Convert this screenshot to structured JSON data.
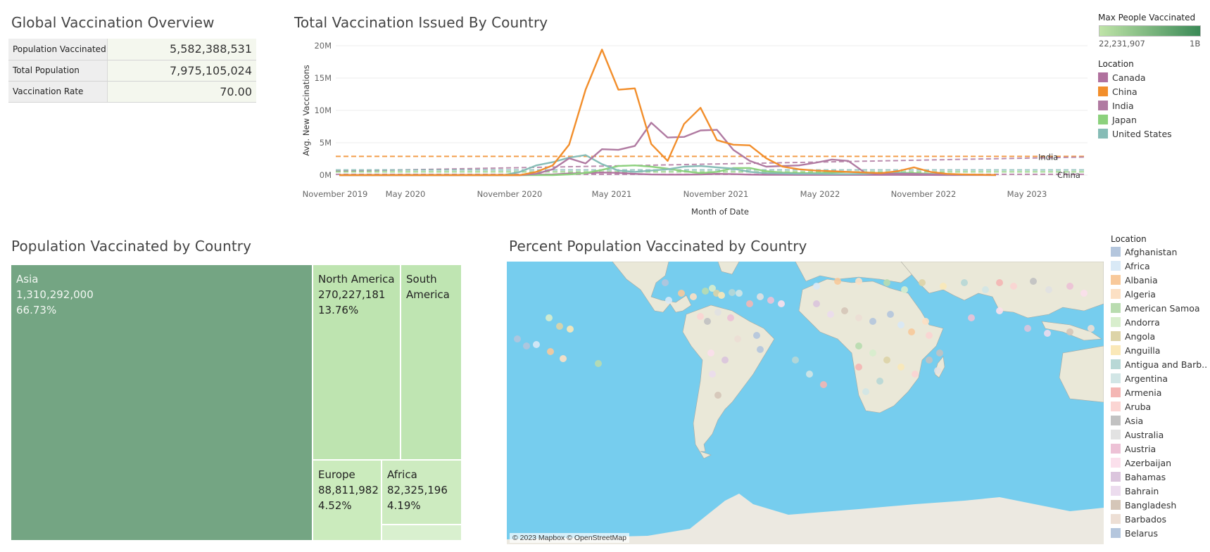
{
  "overview": {
    "title": "Global Vaccination Overview",
    "rows": [
      {
        "label": "Population Vaccinated",
        "value": "5,582,388,531"
      },
      {
        "label": "Total Population",
        "value": "7,975,105,024"
      },
      {
        "label": "Vaccination Rate",
        "value": "70.00"
      }
    ]
  },
  "line_chart_title": "Total Vaccination Issued By Country",
  "color_legend": {
    "title": "Max People Vaccinated",
    "min": "22,231,907",
    "max": "1B",
    "colors": [
      "#bfe4a8",
      "#3b8a57"
    ]
  },
  "location_legend": {
    "title": "Location",
    "items": [
      {
        "name": "Canada",
        "color": "#b0719e"
      },
      {
        "name": "China",
        "color": "#f28e2b"
      },
      {
        "name": "India",
        "color": "#b07aa1"
      },
      {
        "name": "Japan",
        "color": "#8cd17d"
      },
      {
        "name": "United States",
        "color": "#86bcb6"
      }
    ]
  },
  "treemap_title": "Population Vaccinated by Country",
  "map_title": "Percent Population Vaccinated by Country",
  "map_attribution": "© 2023 Mapbox © OpenStreetMap",
  "map_legend": {
    "title": "Location",
    "items": [
      {
        "name": "Afghanistan",
        "color": "#b4c6dd"
      },
      {
        "name": "Africa",
        "color": "#d9e9f6"
      },
      {
        "name": "Albania",
        "color": "#f8c99b"
      },
      {
        "name": "Algeria",
        "color": "#fce0c4"
      },
      {
        "name": "American Samoa",
        "color": "#b9dcb0"
      },
      {
        "name": "Andorra",
        "color": "#d8eecd"
      },
      {
        "name": "Angola",
        "color": "#ddd4a8"
      },
      {
        "name": "Anguilla",
        "color": "#fae8b8"
      },
      {
        "name": "Antigua and Barb..",
        "color": "#b8d8d6"
      },
      {
        "name": "Argentina",
        "color": "#d2e6e6"
      },
      {
        "name": "Armenia",
        "color": "#f4b6b4"
      },
      {
        "name": "Aruba",
        "color": "#fbd5d3"
      },
      {
        "name": "Asia",
        "color": "#c2c2c2"
      },
      {
        "name": "Australia",
        "color": "#e2e2e2"
      },
      {
        "name": "Austria",
        "color": "#edc2d6"
      },
      {
        "name": "Azerbaijan",
        "color": "#fbe0ec"
      },
      {
        "name": "Bahamas",
        "color": "#dbc5dd"
      },
      {
        "name": "Bahrain",
        "color": "#ecdcee"
      },
      {
        "name": "Bangladesh",
        "color": "#d5c6b8"
      },
      {
        "name": "Barbados",
        "color": "#eddfd5"
      },
      {
        "name": "Belarus",
        "color": "#b4c6dd"
      }
    ]
  },
  "chart_data": [
    {
      "type": "line",
      "title": "Total Vaccination Issued By Country",
      "xlabel": "Month of Date",
      "ylabel": "Avg. New Vaccinations",
      "x_ticks": [
        "November 2019",
        "May 2020",
        "November 2020",
        "May 2021",
        "November 2021",
        "May 2022",
        "November 2022",
        "May 2023"
      ],
      "y_ticks": [
        "0M",
        "5M",
        "10M",
        "15M",
        "20M"
      ],
      "ylim": [
        0,
        20000000
      ],
      "x": [
        "2020-01",
        "2020-02",
        "2020-03",
        "2020-04",
        "2020-05",
        "2020-06",
        "2020-07",
        "2020-08",
        "2020-09",
        "2020-10",
        "2020-11",
        "2020-12",
        "2021-01",
        "2021-02",
        "2021-03",
        "2021-04",
        "2021-05",
        "2021-06",
        "2021-07",
        "2021-08",
        "2021-09",
        "2021-10",
        "2021-11",
        "2021-12",
        "2022-01",
        "2022-02",
        "2022-03",
        "2022-04",
        "2022-05",
        "2022-06",
        "2022-07",
        "2022-08",
        "2022-09",
        "2022-10",
        "2022-11",
        "2022-12",
        "2023-01",
        "2023-02",
        "2023-03",
        "2023-04",
        "2023-05"
      ],
      "series": [
        {
          "name": "China",
          "values": [
            0,
            0,
            0,
            0,
            0,
            0,
            0,
            0,
            0,
            0,
            0,
            0,
            500000,
            1500000,
            4700000,
            13200000,
            19400000,
            13200000,
            13400000,
            4800000,
            2200000,
            7900000,
            10400000,
            5400000,
            4700000,
            4600000,
            2600000,
            1300000,
            900000,
            700000,
            600000,
            500000,
            400000,
            300000,
            600000,
            1200000,
            500000,
            200000,
            100000,
            50000,
            20000
          ]
        },
        {
          "name": "India",
          "values": [
            0,
            0,
            0,
            0,
            0,
            0,
            0,
            0,
            0,
            0,
            0,
            0,
            200000,
            900000,
            2600000,
            1800000,
            4000000,
            3900000,
            4500000,
            8100000,
            5800000,
            5900000,
            6900000,
            7000000,
            3900000,
            2200000,
            1300000,
            1400000,
            1500000,
            1900000,
            2400000,
            2200000,
            400000,
            200000,
            200000,
            200000,
            100000,
            100000,
            50000,
            20000,
            10000
          ]
        },
        {
          "name": "United States",
          "values": [
            0,
            0,
            0,
            0,
            0,
            0,
            0,
            0,
            0,
            0,
            0,
            500000,
            1500000,
            2000000,
            2700000,
            3100000,
            1700000,
            700000,
            500000,
            700000,
            900000,
            1300000,
            1400000,
            1200000,
            1000000,
            500000,
            300000,
            250000,
            200000,
            200000,
            150000,
            150000,
            200000,
            350000,
            350000,
            200000,
            150000,
            100000,
            50000,
            50000,
            20000
          ]
        },
        {
          "name": "Japan",
          "values": [
            0,
            0,
            0,
            0,
            0,
            0,
            0,
            0,
            0,
            0,
            0,
            0,
            0,
            0,
            100000,
            300000,
            800000,
            1400000,
            1500000,
            1300000,
            1000000,
            600000,
            300000,
            500000,
            1100000,
            1100000,
            600000,
            400000,
            300000,
            300000,
            400000,
            500000,
            400000,
            300000,
            400000,
            300000,
            200000,
            100000,
            50000,
            30000,
            10000
          ]
        },
        {
          "name": "Canada",
          "values": [
            0,
            0,
            0,
            0,
            0,
            0,
            0,
            0,
            0,
            0,
            0,
            0,
            50000,
            100000,
            250000,
            300000,
            400000,
            350000,
            200000,
            100000,
            80000,
            80000,
            100000,
            200000,
            150000,
            80000,
            50000,
            40000,
            30000,
            30000,
            30000,
            30000,
            30000,
            30000,
            30000,
            20000,
            20000,
            10000,
            10000,
            10000,
            10000
          ]
        }
      ],
      "average_lines": [
        {
          "name": "China",
          "value": 2900000
        },
        {
          "name": "India",
          "value": 1700000
        },
        {
          "name": "United States",
          "value": 800000
        },
        {
          "name": "Japan",
          "value": 500000
        },
        {
          "name": "Canada",
          "value": 120000
        }
      ],
      "line_labels": [
        {
          "name": "India",
          "text": "India"
        },
        {
          "name": "China",
          "text": "China"
        }
      ]
    },
    {
      "type": "treemap",
      "title": "Population Vaccinated by Country",
      "items": [
        {
          "name": "Asia",
          "value": "1,310,292,000",
          "pct": "66.73%",
          "color": "#74a583"
        },
        {
          "name": "North America",
          "value": "270,227,181",
          "pct": "13.76%",
          "color": "#bee4b0"
        },
        {
          "name": "South America",
          "value": "",
          "pct": "",
          "color": "#bfe5b2"
        },
        {
          "name": "Europe",
          "value": "88,811,982",
          "pct": "4.52%",
          "color": "#cbebbd"
        },
        {
          "name": "Africa",
          "value": "82,325,196",
          "pct": "4.19%",
          "color": "#cdebc0"
        },
        {
          "name": "",
          "value": "",
          "pct": "",
          "color": "#d9f0cf"
        }
      ]
    }
  ]
}
